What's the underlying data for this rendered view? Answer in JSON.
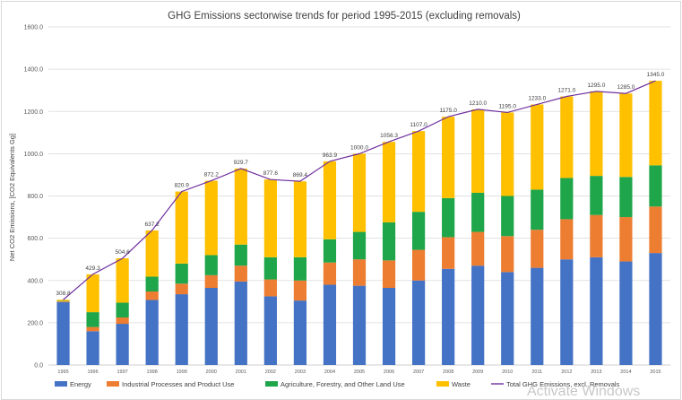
{
  "chart_data": {
    "type": "bar",
    "stacked": true,
    "title": "GHG Emissions sectorwise trends for period 1995-2015 (excluding removals)",
    "ylabel": "Net CO2 Emissions, [CO2 Equivalents  Gg]",
    "xlabel": "",
    "ylim": [
      0,
      1600
    ],
    "yticks": [
      "0.0",
      "200.0",
      "400.0",
      "600.0",
      "800.0",
      "1000.0",
      "1200.0",
      "1400.0",
      "1600.0"
    ],
    "grid": true,
    "legend_position": "bottom",
    "categories": [
      "1995",
      "1996",
      "1997",
      "1998",
      "1999",
      "2000",
      "2001",
      "2002",
      "2003",
      "2004",
      "2005",
      "2006",
      "2007",
      "2008",
      "2009",
      "2010",
      "2011",
      "2012",
      "2013",
      "2014",
      "2015"
    ],
    "series": [
      {
        "name": "Energy",
        "color": "#4472c4",
        "values": [
          298,
          160,
          195,
          308,
          335,
          365,
          395,
          325,
          305,
          380,
          375,
          365,
          400,
          455,
          470,
          440,
          460,
          500,
          510,
          490,
          530
        ]
      },
      {
        "name": "Industrial Processes and Product Use",
        "color": "#ed7d31",
        "values": [
          3,
          20,
          30,
          40,
          50,
          60,
          75,
          80,
          95,
          105,
          125,
          130,
          145,
          150,
          160,
          170,
          180,
          190,
          200,
          210,
          220
        ]
      },
      {
        "name": "Agriculture, Forestry, and Other Land Use",
        "color": "#1fa64a",
        "values": [
          2,
          70,
          70,
          70,
          95,
          95,
          100,
          105,
          110,
          110,
          130,
          180,
          180,
          185,
          185,
          190,
          190,
          195,
          185,
          190,
          195
        ]
      },
      {
        "name": "Waste",
        "color": "#ffc000",
        "values": [
          6,
          179,
          210,
          219,
          341,
          352,
          360,
          368,
          359,
          369,
          370,
          381,
          382,
          385,
          395,
          395,
          403,
          386,
          400,
          395,
          400
        ]
      }
    ],
    "line": {
      "name": "Total GHG Emissions, excl. Removals",
      "color": "#7030a0",
      "values": [
        308.8,
        429.3,
        504.6,
        637.2,
        820.9,
        872.2,
        929.7,
        877.6,
        869.4,
        963.9,
        1000.0,
        1056.3,
        1107.0,
        1175.0,
        1210.0,
        1195.0,
        1233.0,
        1271.0,
        1295.0,
        1285.0,
        1345.0
      ],
      "labels": [
        "308.8",
        "429.3",
        "504.6",
        "637.2",
        "820.9",
        "872.2",
        "929.7",
        "877.6",
        "869.4",
        "963.9",
        "1000.0",
        "1056.3",
        "1107.0",
        "1175.0",
        "1210.0",
        "1195.0",
        "1233.0",
        "1271.0",
        "1295.0",
        "1285.0",
        "1345.0"
      ]
    }
  },
  "watermark": "Activate Windows",
  "colors": {
    "grid": "#d9d9d9",
    "axis": "#bfbfbf"
  }
}
